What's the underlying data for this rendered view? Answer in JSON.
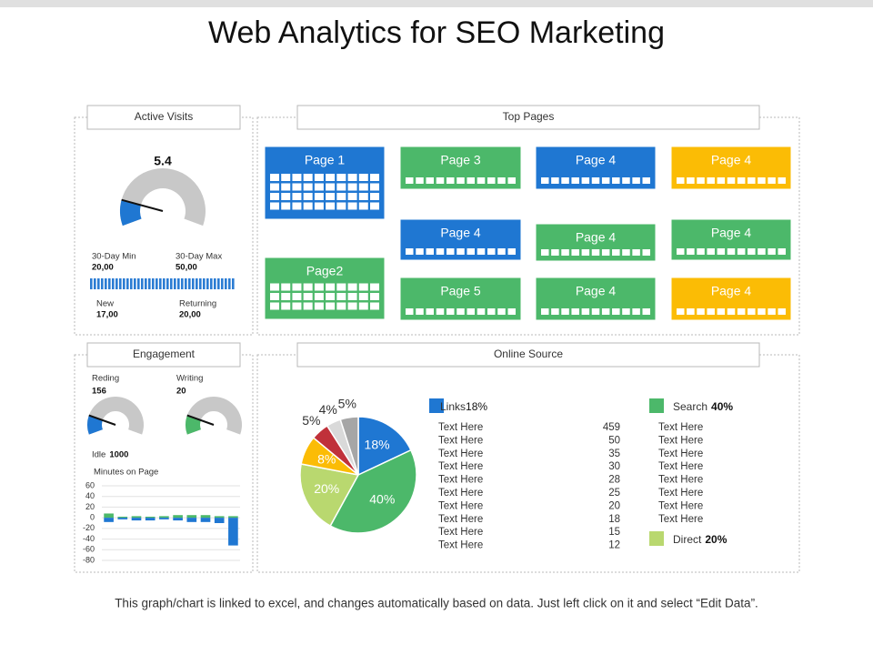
{
  "title": "Web Analytics for SEO Marketing",
  "footer": "This graph/chart is linked to excel, and changes automatically based on data. Just left click on it and select “Edit Data”.",
  "active_visits": {
    "header": "Active Visits",
    "value": 5.4,
    "stats": [
      {
        "label": "30-Day Min",
        "value": "20,00"
      },
      {
        "label": "30-Day Max",
        "value": "50,00"
      },
      {
        "label": "New",
        "value": "17,00"
      },
      {
        "label": "Returning",
        "value": "20,00"
      }
    ]
  },
  "top_pages": {
    "header": "Top Pages",
    "tiles": [
      {
        "label": "Page 1",
        "color": "#1f77d2"
      },
      {
        "label": "Page 3",
        "color": "#4cb86a"
      },
      {
        "label": "Page 4",
        "color": "#1f77d2"
      },
      {
        "label": "Page 4",
        "color": "#fbbc05"
      },
      {
        "label": "Page 4",
        "color": "#1f77d2"
      },
      {
        "label": "Page 4",
        "color": "#4cb86a"
      },
      {
        "label": "Page 4",
        "color": "#4cb86a"
      },
      {
        "label": "Page2",
        "color": "#4cb86a"
      },
      {
        "label": "Page 5",
        "color": "#4cb86a"
      },
      {
        "label": "Page 4",
        "color": "#4cb86a"
      },
      {
        "label": "Page 4",
        "color": "#fbbc05"
      }
    ]
  },
  "engagement": {
    "header": "Engagement",
    "stats": [
      {
        "label": "Reding",
        "value": 156
      },
      {
        "label": "Writing",
        "value": 20
      }
    ],
    "idle": {
      "label": "Idle",
      "value": 1000
    },
    "chart": {
      "type": "bar",
      "title": "Minutes on Page",
      "ylim": [
        -80,
        60
      ],
      "yticks": [
        60,
        40,
        20,
        0,
        -20,
        -40,
        -60,
        -80
      ],
      "grid": true,
      "series": [
        {
          "color": "#4cb86a",
          "values": [
            8,
            2,
            3,
            2,
            3,
            5,
            5,
            5,
            3,
            3
          ]
        },
        {
          "color": "#1f77d2",
          "values": [
            -8,
            -3,
            -5,
            -5,
            -3,
            -5,
            -8,
            -8,
            -10,
            -52
          ]
        }
      ]
    }
  },
  "online_source": {
    "header": "Online Source",
    "chart": {
      "type": "pie",
      "values": [
        18,
        40,
        20,
        8,
        5,
        4,
        5
      ],
      "value_labels": [
        "18%",
        "40%",
        "20%",
        "8%",
        "5%",
        "4%",
        "5%"
      ],
      "colors": [
        "#1f77d2",
        "#4cb86a",
        "#b9d86f",
        "#fbbc05",
        "#c0313a",
        "#d9d9d9",
        "#a6a6a6"
      ]
    },
    "legend": [
      {
        "name": "Links",
        "label": "18%",
        "color": "#1f77d2"
      },
      {
        "name": "Search",
        "label": "40%",
        "color": "#4cb86a"
      },
      {
        "name": "Direct",
        "label": "20%",
        "color": "#b9d86f"
      }
    ],
    "rows_left": [
      {
        "text": "Text Here",
        "value": 459
      },
      {
        "text": "Text Here",
        "value": 50
      },
      {
        "text": "Text Here",
        "value": 35
      },
      {
        "text": "Text Here",
        "value": 30
      },
      {
        "text": "Text Here",
        "value": 28
      },
      {
        "text": "Text Here",
        "value": 25
      },
      {
        "text": "Text Here",
        "value": 20
      },
      {
        "text": "Text Here",
        "value": 18
      },
      {
        "text": "Text Here",
        "value": 15
      },
      {
        "text": "Text Here",
        "value": 12
      }
    ],
    "rows_right": [
      "Text Here",
      "Text Here",
      "Text Here",
      "Text Here",
      "Text Here",
      "Text Here",
      "Text Here",
      "Text Here"
    ]
  }
}
